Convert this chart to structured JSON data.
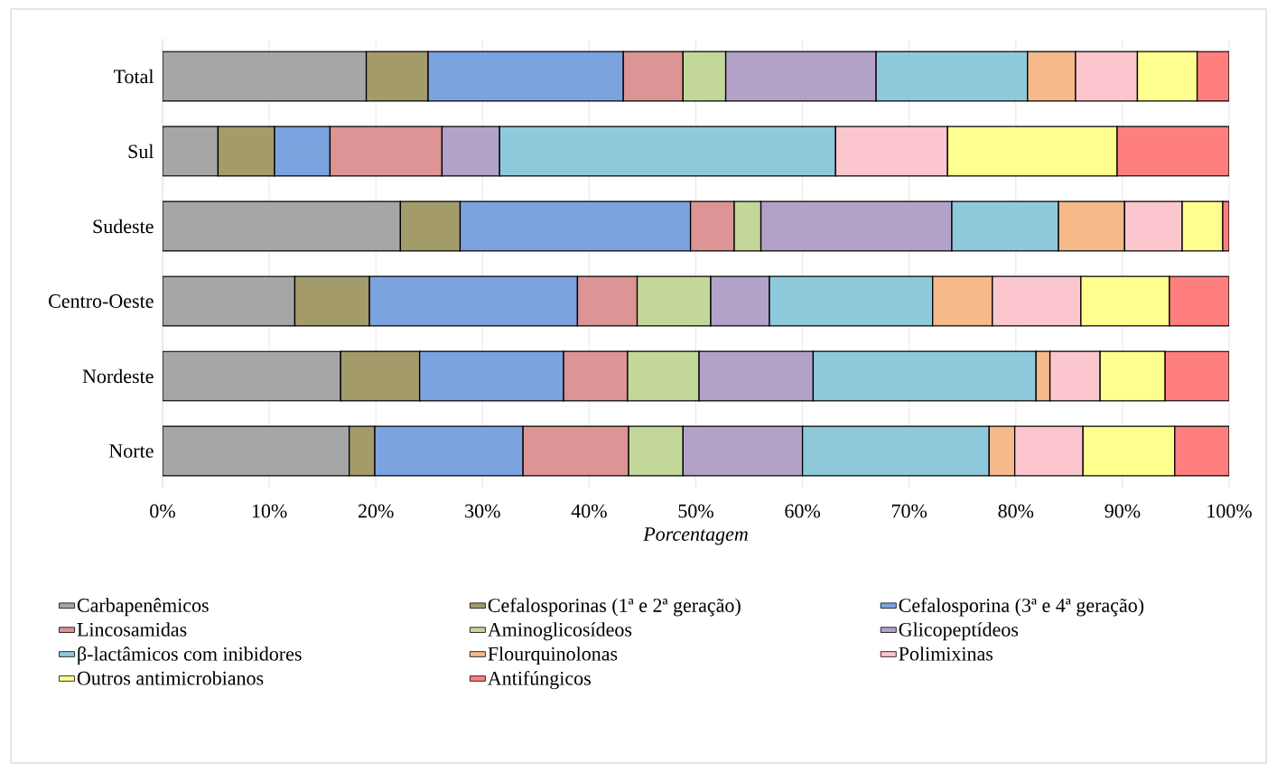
{
  "chart_data": {
    "type": "bar",
    "orientation": "horizontal",
    "stacked": true,
    "categories": [
      "Total",
      "Sul",
      "Sudeste",
      "Centro-Oeste",
      "Nordeste",
      "Norte"
    ],
    "xlabel": "Porcentagem",
    "xlim": [
      0,
      100
    ],
    "xticks": [
      {
        "value": 0,
        "label": "0%"
      },
      {
        "value": 10,
        "label": "10%"
      },
      {
        "value": 20,
        "label": "20%"
      },
      {
        "value": 30,
        "label": "30%"
      },
      {
        "value": 40,
        "label": "40%"
      },
      {
        "value": 50,
        "label": "50%"
      },
      {
        "value": 60,
        "label": "60%"
      },
      {
        "value": 70,
        "label": "70%"
      },
      {
        "value": 80,
        "label": "80%"
      },
      {
        "value": 90,
        "label": "90%"
      },
      {
        "value": 100,
        "label": "100%"
      }
    ],
    "grid": "x",
    "legend": "bottom",
    "series": [
      {
        "name": "Carbapenêmicos",
        "color": "#a6a6a6",
        "values": [
          19.1,
          5.2,
          22.3,
          12.4,
          16.7,
          17.5
        ]
      },
      {
        "name": "Cefalosporinas (1ª e 2ª geração)",
        "color": "#a39b6a",
        "values": [
          5.8,
          5.3,
          5.6,
          7.0,
          7.4,
          2.4
        ]
      },
      {
        "name": "Cefalosporina (3ª e 4ª geração)",
        "color": "#7ba3df",
        "values": [
          18.3,
          5.2,
          21.6,
          19.5,
          13.5,
          13.9
        ]
      },
      {
        "name": "Lincosamidas",
        "color": "#dc9494",
        "values": [
          5.6,
          10.5,
          4.1,
          5.6,
          6.0,
          9.9
        ]
      },
      {
        "name": "Aminoglicosídeos",
        "color": "#c4d79b",
        "values": [
          4.0,
          null,
          2.5,
          6.9,
          6.7,
          5.1
        ]
      },
      {
        "name": "Glicopeptídeos",
        "color": "#b3a2c7",
        "values": [
          14.1,
          5.4,
          17.9,
          5.5,
          10.7,
          11.2
        ]
      },
      {
        "name": "β-lactâmicos com inibidores",
        "color": "#8ecadb",
        "values": [
          14.2,
          31.5,
          10.0,
          15.3,
          20.9,
          17.5
        ]
      },
      {
        "name": "Flourquinolonas",
        "color": "#f5b98a",
        "values": [
          4.5,
          null,
          6.2,
          5.6,
          1.3,
          2.4
        ]
      },
      {
        "name": "Polimixinas",
        "color": "#fcc6cf",
        "values": [
          5.8,
          10.5,
          5.4,
          8.3,
          4.7,
          6.4
        ]
      },
      {
        "name": "Outros antimicrobianos",
        "color": "#ffff8f",
        "values": [
          5.6,
          15.9,
          3.8,
          8.3,
          6.1,
          8.6
        ]
      },
      {
        "name": "Antifúngicos",
        "color": "#ff7f7f",
        "values": [
          3.0,
          10.5,
          0.6,
          5.6,
          6.0,
          5.1
        ]
      }
    ]
  }
}
